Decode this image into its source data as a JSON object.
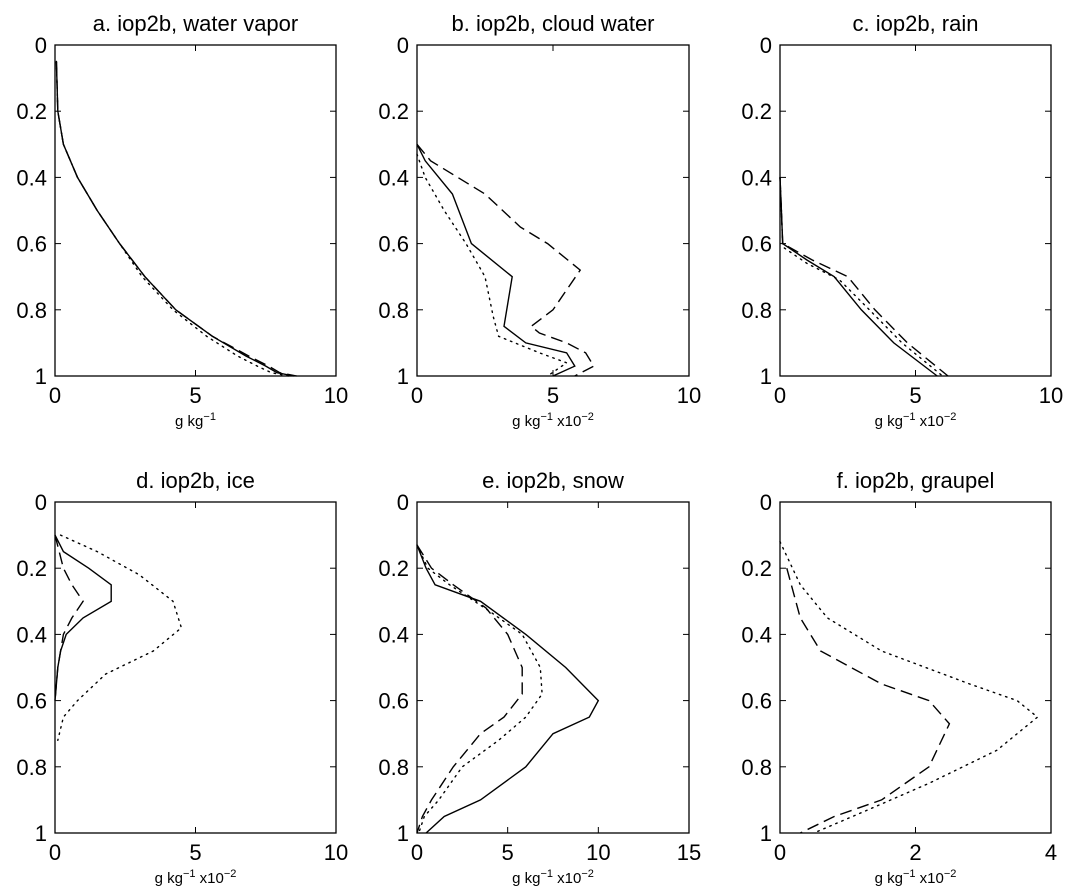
{
  "chart_data": [
    {
      "type": "line",
      "title": "a. iop2b, water vapor",
      "xlabel_base": "g kg",
      "xlabel_exp": "−1",
      "xlabel_scale": "",
      "xlim": [
        0,
        10
      ],
      "ylim": [
        0,
        1
      ],
      "y_reversed": true,
      "xticks": [
        0,
        5,
        10
      ],
      "yticks": [
        0,
        0.2,
        0.4,
        0.6,
        0.8,
        1
      ],
      "ytick_labels": [
        "0",
        "0.2",
        "0.4",
        "0.6",
        "0.8",
        "1"
      ],
      "series": [
        {
          "style": "solid",
          "points": [
            [
              0.05,
              0.05
            ],
            [
              0.1,
              0.2
            ],
            [
              0.3,
              0.3
            ],
            [
              0.8,
              0.4
            ],
            [
              1.5,
              0.5
            ],
            [
              2.3,
              0.6
            ],
            [
              3.2,
              0.7
            ],
            [
              4.3,
              0.8
            ],
            [
              5.6,
              0.88
            ],
            [
              6.8,
              0.94
            ],
            [
              7.5,
              0.97
            ],
            [
              7.9,
              0.99
            ],
            [
              8.5,
              1.0
            ]
          ]
        },
        {
          "style": "dashed",
          "points": [
            [
              0.05,
              0.05
            ],
            [
              0.1,
              0.2
            ],
            [
              0.3,
              0.3
            ],
            [
              0.8,
              0.4
            ],
            [
              1.5,
              0.5
            ],
            [
              2.3,
              0.6
            ],
            [
              3.2,
              0.7
            ],
            [
              4.3,
              0.8
            ],
            [
              5.6,
              0.88
            ],
            [
              6.9,
              0.94
            ],
            [
              7.6,
              0.97
            ],
            [
              8.0,
              0.99
            ],
            [
              8.6,
              1.0
            ]
          ]
        },
        {
          "style": "dotted",
          "points": [
            [
              0.05,
              0.05
            ],
            [
              0.1,
              0.2
            ],
            [
              0.3,
              0.3
            ],
            [
              0.8,
              0.4
            ],
            [
              1.5,
              0.5
            ],
            [
              2.3,
              0.6
            ],
            [
              3.1,
              0.7
            ],
            [
              4.2,
              0.8
            ],
            [
              5.4,
              0.88
            ],
            [
              6.5,
              0.94
            ],
            [
              7.2,
              0.97
            ],
            [
              7.7,
              0.99
            ],
            [
              8.3,
              1.0
            ]
          ]
        }
      ]
    },
    {
      "type": "line",
      "title": "b. iop2b, cloud water",
      "xlabel_base": "g kg",
      "xlabel_exp": "−1",
      "xlabel_scale": " x10",
      "xlabel_scale_exp": "−2",
      "xlim": [
        0,
        10
      ],
      "ylim": [
        0,
        1
      ],
      "y_reversed": true,
      "xticks": [
        0,
        5,
        10
      ],
      "yticks": [
        0,
        0.2,
        0.4,
        0.6,
        0.8,
        1
      ],
      "ytick_labels": [
        "0",
        "0.2",
        "0.4",
        "0.6",
        "0.8",
        "1"
      ],
      "series": [
        {
          "style": "solid",
          "points": [
            [
              0,
              0.3
            ],
            [
              0.3,
              0.35
            ],
            [
              1.3,
              0.45
            ],
            [
              2.0,
              0.6
            ],
            [
              3.5,
              0.7
            ],
            [
              3.2,
              0.85
            ],
            [
              4.0,
              0.9
            ],
            [
              5.5,
              0.93
            ],
            [
              5.8,
              0.97
            ],
            [
              5.0,
              1.0
            ]
          ]
        },
        {
          "style": "dashed",
          "points": [
            [
              0,
              0.3
            ],
            [
              0.5,
              0.35
            ],
            [
              2.5,
              0.45
            ],
            [
              3.8,
              0.55
            ],
            [
              4.8,
              0.6
            ],
            [
              6.0,
              0.68
            ],
            [
              5.0,
              0.8
            ],
            [
              4.2,
              0.85
            ],
            [
              4.5,
              0.87
            ],
            [
              5.5,
              0.9
            ],
            [
              6.2,
              0.93
            ],
            [
              6.5,
              0.97
            ],
            [
              5.8,
              1.0
            ]
          ]
        },
        {
          "style": "dotted",
          "points": [
            [
              0,
              0.33
            ],
            [
              0.3,
              0.4
            ],
            [
              1.0,
              0.5
            ],
            [
              1.8,
              0.6
            ],
            [
              2.5,
              0.7
            ],
            [
              2.8,
              0.82
            ],
            [
              3.0,
              0.88
            ],
            [
              4.5,
              0.93
            ],
            [
              5.5,
              0.96
            ],
            [
              4.8,
              1.0
            ]
          ]
        }
      ]
    },
    {
      "type": "line",
      "title": "c. iop2b, rain",
      "xlabel_base": "g kg",
      "xlabel_exp": "−1",
      "xlabel_scale": " x10",
      "xlabel_scale_exp": "−2",
      "xlim": [
        0,
        10
      ],
      "ylim": [
        0,
        1
      ],
      "y_reversed": true,
      "xticks": [
        0,
        5,
        10
      ],
      "yticks": [
        0,
        0.2,
        0.4,
        0.6,
        0.8,
        1
      ],
      "ytick_labels": [
        "0",
        "0.2",
        "0.4",
        "0.6",
        "0.8",
        "1"
      ],
      "series": [
        {
          "style": "solid",
          "points": [
            [
              0,
              0.4
            ],
            [
              0.05,
              0.5
            ],
            [
              0.1,
              0.6
            ],
            [
              1.0,
              0.65
            ],
            [
              2.0,
              0.7
            ],
            [
              3.0,
              0.8
            ],
            [
              4.2,
              0.9
            ],
            [
              5.8,
              1.0
            ]
          ]
        },
        {
          "style": "dashed",
          "points": [
            [
              0,
              0.4
            ],
            [
              0.05,
              0.5
            ],
            [
              0.1,
              0.6
            ],
            [
              1.2,
              0.65
            ],
            [
              2.5,
              0.7
            ],
            [
              3.5,
              0.8
            ],
            [
              4.7,
              0.9
            ],
            [
              6.2,
              1.0
            ]
          ]
        },
        {
          "style": "dotted",
          "points": [
            [
              0,
              0.4
            ],
            [
              0.05,
              0.5
            ],
            [
              0.1,
              0.61
            ],
            [
              1.0,
              0.66
            ],
            [
              2.2,
              0.71
            ],
            [
              3.3,
              0.8
            ],
            [
              4.5,
              0.9
            ],
            [
              6.0,
              1.0
            ]
          ]
        }
      ]
    },
    {
      "type": "line",
      "title": "d. iop2b, ice",
      "xlabel_base": "g kg",
      "xlabel_exp": "−1",
      "xlabel_scale": " x10",
      "xlabel_scale_exp": "−2",
      "xlim": [
        0,
        10
      ],
      "ylim": [
        0,
        1
      ],
      "y_reversed": true,
      "xticks": [
        0,
        5,
        10
      ],
      "yticks": [
        0,
        0.2,
        0.4,
        0.6,
        0.8,
        1
      ],
      "ytick_labels": [
        "0",
        "0.2",
        "0.4",
        "0.6",
        "0.8",
        "1"
      ],
      "series": [
        {
          "style": "solid",
          "points": [
            [
              0,
              0.1
            ],
            [
              0.3,
              0.15
            ],
            [
              1.2,
              0.2
            ],
            [
              2.0,
              0.25
            ],
            [
              2.0,
              0.3
            ],
            [
              1.0,
              0.35
            ],
            [
              0.4,
              0.4
            ],
            [
              0.2,
              0.45
            ],
            [
              0.1,
              0.5
            ],
            [
              0,
              0.6
            ]
          ]
        },
        {
          "style": "dashed",
          "points": [
            [
              0,
              0.1
            ],
            [
              0.3,
              0.2
            ],
            [
              0.6,
              0.25
            ],
            [
              1.0,
              0.3
            ],
            [
              0.6,
              0.35
            ],
            [
              0.3,
              0.4
            ],
            [
              0.1,
              0.5
            ],
            [
              0,
              0.6
            ]
          ]
        },
        {
          "style": "dotted",
          "points": [
            [
              0.2,
              0.1
            ],
            [
              1.5,
              0.15
            ],
            [
              3.0,
              0.22
            ],
            [
              4.2,
              0.3
            ],
            [
              4.5,
              0.38
            ],
            [
              3.5,
              0.45
            ],
            [
              1.8,
              0.52
            ],
            [
              0.8,
              0.6
            ],
            [
              0.3,
              0.65
            ],
            [
              0.1,
              0.72
            ]
          ]
        }
      ]
    },
    {
      "type": "line",
      "title": "e. iop2b, snow",
      "xlabel_base": "g kg",
      "xlabel_exp": "−1",
      "xlabel_scale": " x10",
      "xlabel_scale_exp": "−2",
      "xlim": [
        0,
        15
      ],
      "ylim": [
        0,
        1
      ],
      "y_reversed": true,
      "xticks": [
        0,
        5,
        10,
        15
      ],
      "yticks": [
        0,
        0.2,
        0.4,
        0.6,
        0.8,
        1
      ],
      "ytick_labels": [
        "0",
        "0.2",
        "0.4",
        "0.6",
        "0.8",
        "1"
      ],
      "series": [
        {
          "style": "solid",
          "points": [
            [
              0,
              0.13
            ],
            [
              0.5,
              0.2
            ],
            [
              1.0,
              0.25
            ],
            [
              3.5,
              0.3
            ],
            [
              6.0,
              0.4
            ],
            [
              8.2,
              0.5
            ],
            [
              10.0,
              0.6
            ],
            [
              9.5,
              0.65
            ],
            [
              7.5,
              0.7
            ],
            [
              6.0,
              0.8
            ],
            [
              3.5,
              0.9
            ],
            [
              1.5,
              0.95
            ],
            [
              0.5,
              1.0
            ]
          ]
        },
        {
          "style": "dashed",
          "points": [
            [
              0,
              0.13
            ],
            [
              0.8,
              0.2
            ],
            [
              2.0,
              0.25
            ],
            [
              3.8,
              0.32
            ],
            [
              5.0,
              0.4
            ],
            [
              5.8,
              0.5
            ],
            [
              5.8,
              0.58
            ],
            [
              4.8,
              0.65
            ],
            [
              3.5,
              0.7
            ],
            [
              2.0,
              0.8
            ],
            [
              0.8,
              0.9
            ],
            [
              0.3,
              0.95
            ],
            [
              0,
              1.0
            ]
          ]
        },
        {
          "style": "dotted",
          "points": [
            [
              0,
              0.13
            ],
            [
              0.6,
              0.2
            ],
            [
              1.8,
              0.25
            ],
            [
              4.0,
              0.33
            ],
            [
              5.8,
              0.4
            ],
            [
              6.8,
              0.5
            ],
            [
              6.9,
              0.58
            ],
            [
              6.0,
              0.65
            ],
            [
              4.5,
              0.72
            ],
            [
              2.5,
              0.8
            ],
            [
              1.2,
              0.9
            ],
            [
              0.4,
              0.95
            ],
            [
              0.1,
              1.0
            ]
          ]
        }
      ]
    },
    {
      "type": "line",
      "title": "f. iop2b, graupel",
      "xlabel_base": "g kg",
      "xlabel_exp": "−1",
      "xlabel_scale": " x10",
      "xlabel_scale_exp": "−2",
      "xlim": [
        0,
        4
      ],
      "ylim": [
        0,
        1
      ],
      "y_reversed": true,
      "xticks": [
        0,
        2,
        4
      ],
      "yticks": [
        0,
        0.2,
        0.4,
        0.6,
        0.8,
        1
      ],
      "ytick_labels": [
        "0",
        "0.2",
        "0.4",
        "0.6",
        "0.8",
        "1"
      ],
      "series": [
        {
          "style": "dashed",
          "points": [
            [
              0.1,
              0.2
            ],
            [
              0.3,
              0.35
            ],
            [
              0.6,
              0.45
            ],
            [
              1.5,
              0.55
            ],
            [
              2.2,
              0.6
            ],
            [
              2.5,
              0.67
            ],
            [
              2.2,
              0.8
            ],
            [
              1.5,
              0.9
            ],
            [
              0.8,
              0.95
            ],
            [
              0.3,
              1.0
            ]
          ]
        },
        {
          "style": "dotted",
          "points": [
            [
              0,
              0.12
            ],
            [
              0.3,
              0.25
            ],
            [
              0.7,
              0.35
            ],
            [
              1.5,
              0.45
            ],
            [
              2.8,
              0.55
            ],
            [
              3.5,
              0.6
            ],
            [
              3.8,
              0.65
            ],
            [
              3.2,
              0.75
            ],
            [
              2.2,
              0.85
            ],
            [
              1.3,
              0.93
            ],
            [
              0.5,
              1.0
            ]
          ]
        }
      ]
    }
  ]
}
